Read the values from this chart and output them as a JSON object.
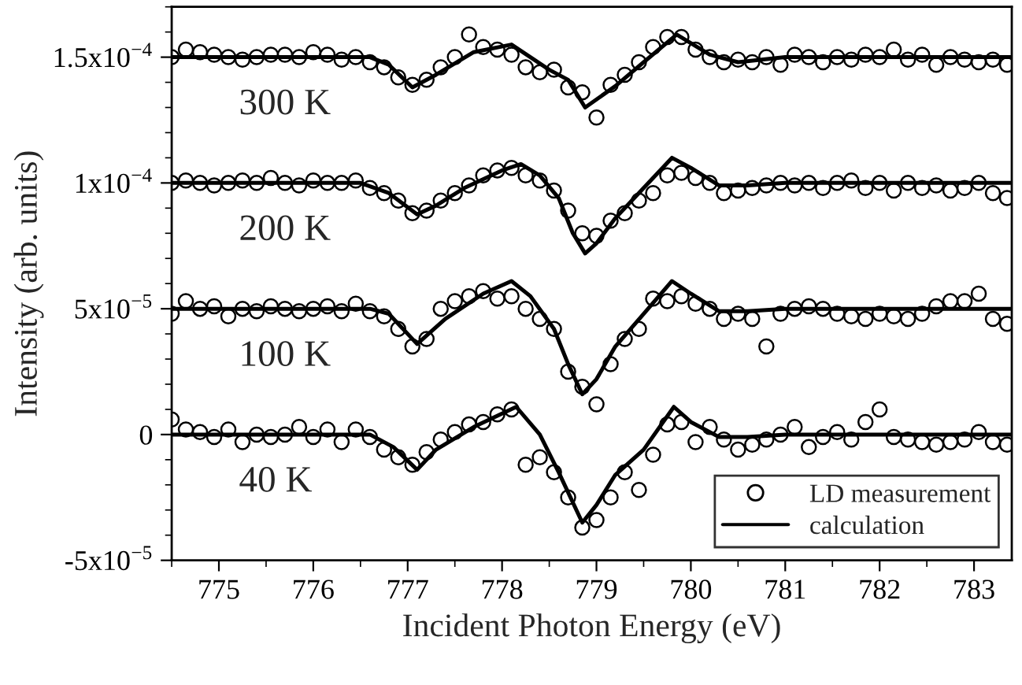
{
  "chart_data": {
    "type": "scatter",
    "xlabel": "Incident Photon Energy (eV)",
    "ylabel": "Intensity (arb. units)",
    "xlim": [
      774.5,
      783.4
    ],
    "xticks": [
      775,
      776,
      777,
      778,
      779,
      780,
      781,
      782,
      783
    ],
    "ylim": [
      -5e-05,
      0.00017
    ],
    "yticks": [
      {
        "value": -5e-05,
        "label": "-5x10$^{−5}$"
      },
      {
        "value": 0,
        "label": "0"
      },
      {
        "value": 5e-05,
        "label": "5x10$^{−5}$"
      },
      {
        "value": 0.0001,
        "label": "1x10$^{−4}$"
      },
      {
        "value": 0.00015,
        "label": "1.5x10$^{−4}$"
      }
    ],
    "grid": false,
    "legend": "bottom right",
    "x": [
      774.5,
      774.65,
      774.8,
      774.95,
      775.1,
      775.25,
      775.4,
      775.55,
      775.7,
      775.85,
      776.0,
      776.15,
      776.3,
      776.45,
      776.6,
      776.75,
      776.9,
      777.05,
      777.2,
      777.35,
      777.5,
      777.65,
      777.8,
      777.95,
      778.1,
      778.25,
      778.4,
      778.55,
      778.7,
      778.85,
      779.0,
      779.15,
      779.3,
      779.45,
      779.6,
      779.75,
      779.9,
      780.05,
      780.2,
      780.35,
      780.5,
      780.65,
      780.8,
      780.95,
      781.1,
      781.25,
      781.4,
      781.55,
      781.7,
      781.85,
      782.0,
      782.15,
      782.3,
      782.45,
      782.6,
      782.75,
      782.9,
      783.05,
      783.2,
      783.35
    ],
    "series": [
      {
        "name": "LD measurement",
        "marker": "circle",
        "color": "#000000",
        "values": [
          0.00015,
          0.000153,
          0.000152,
          0.000151,
          0.00015,
          0.000149,
          0.00015,
          0.000151,
          0.000151,
          0.00015,
          0.000152,
          0.000151,
          0.000149,
          0.00015,
          0.000148,
          0.000146,
          0.000142,
          0.000139,
          0.000141,
          0.000146,
          0.00015,
          0.000159,
          0.000154,
          0.000153,
          0.000151,
          0.000146,
          0.000144,
          0.000145,
          0.000138,
          0.000136,
          0.000126,
          0.000139,
          0.000143,
          0.000148,
          0.000154,
          0.000158,
          0.000158,
          0.000153,
          0.00015,
          0.000148,
          0.000149,
          0.000148,
          0.00015,
          0.000147,
          0.000151,
          0.00015,
          0.000148,
          0.00015,
          0.000149,
          0.000151,
          0.00015,
          0.000153,
          0.000149,
          0.000151,
          0.000147,
          0.00015,
          0.000149,
          0.000148,
          0.000149,
          0.000147
        ]
      },
      {
        "marker": "circle",
        "color": "#000000",
        "values": [
          0.0001,
          0.000101,
          0.0001,
          9.9e-05,
          0.0001,
          0.000101,
          0.0001,
          0.000102,
          0.0001,
          9.9e-05,
          0.000101,
          0.0001,
          0.0001,
          0.000101,
          9.8e-05,
          9.6e-05,
          9.3e-05,
          8.8e-05,
          8.9e-05,
          9.3e-05,
          9.6e-05,
          9.9e-05,
          0.000103,
          0.000105,
          0.000106,
          0.000103,
          0.000101,
          9.7e-05,
          8.9e-05,
          8e-05,
          7.9e-05,
          8.5e-05,
          8.8e-05,
          9.3e-05,
          9.6e-05,
          0.000103,
          0.000104,
          0.000102,
          0.0001,
          9.6e-05,
          9.7e-05,
          9.8e-05,
          9.9e-05,
          0.0001,
          9.9e-05,
          0.0001,
          9.8e-05,
          0.0001,
          0.000101,
          9.8e-05,
          0.0001,
          9.7e-05,
          0.0001,
          9.8e-05,
          9.9e-05,
          9.7e-05,
          9.8e-05,
          0.0001,
          9.6e-05,
          9.4e-05
        ]
      },
      {
        "marker": "circle",
        "color": "#000000",
        "values": [
          4.8e-05,
          5.3e-05,
          5e-05,
          5.1e-05,
          4.7e-05,
          5e-05,
          4.9e-05,
          5.1e-05,
          5e-05,
          4.9e-05,
          5e-05,
          5.1e-05,
          4.9e-05,
          5.2e-05,
          4.9e-05,
          4.7e-05,
          4.2e-05,
          3.5e-05,
          3.8e-05,
          5e-05,
          5.3e-05,
          5.5e-05,
          5.7e-05,
          5.4e-05,
          5.5e-05,
          5e-05,
          4.6e-05,
          4.2e-05,
          2.5e-05,
          1.9e-05,
          1.2e-05,
          2.8e-05,
          3.8e-05,
          4.2e-05,
          5.4e-05,
          5.3e-05,
          5.5e-05,
          5.2e-05,
          5e-05,
          4.6e-05,
          4.8e-05,
          4.6e-05,
          3.5e-05,
          4.8e-05,
          5e-05,
          5.1e-05,
          5e-05,
          4.8e-05,
          4.7e-05,
          4.6e-05,
          4.8e-05,
          4.7e-05,
          4.6e-05,
          4.8e-05,
          5.1e-05,
          5.3e-05,
          5.3e-05,
          5.6e-05,
          4.6e-05,
          4.4e-05
        ]
      },
      {
        "marker": "circle",
        "color": "#000000",
        "values": [
          6e-06,
          2e-06,
          1e-06,
          -1e-06,
          2e-06,
          -3e-06,
          0,
          -1e-06,
          0,
          3e-06,
          -1e-06,
          2e-06,
          -3e-06,
          2e-06,
          -1e-06,
          -6e-06,
          -9e-06,
          -1.2e-05,
          -7e-06,
          -2e-06,
          1e-06,
          4e-06,
          5e-06,
          8e-06,
          1e-05,
          -1.2e-05,
          -9e-06,
          -1.5e-05,
          -2.5e-05,
          -3.7e-05,
          -3.4e-05,
          -2.5e-05,
          -1.5e-05,
          -2.2e-05,
          -8e-06,
          4e-06,
          5e-06,
          -3e-06,
          3e-06,
          -2e-06,
          -6e-06,
          -4e-06,
          -2e-06,
          0,
          3e-06,
          -5e-06,
          -1e-06,
          1e-06,
          -2e-06,
          5e-06,
          1e-05,
          -1e-06,
          -2e-06,
          -3e-06,
          -4e-06,
          -3e-06,
          -2e-06,
          1e-06,
          -3e-06,
          -4e-06
        ]
      },
      {
        "type": "line",
        "marker": "none",
        "name": "calculation",
        "color": "#000000",
        "x": [
          774.5,
          776.6,
          776.8,
          777.05,
          777.3,
          777.7,
          778.1,
          778.3,
          778.5,
          778.7,
          778.88,
          779.2,
          779.5,
          779.85,
          780.2,
          780.5,
          781.0,
          783.4
        ],
        "values": [
          0.00015,
          0.00015,
          0.000147,
          0.000138,
          0.000143,
          0.000152,
          0.000155,
          0.00015,
          0.000145,
          0.000141,
          0.00013,
          0.0001385,
          0.000148,
          0.000159,
          0.000151,
          0.000148,
          0.00015,
          0.00015
        ]
      },
      {
        "type": "line",
        "marker": "none",
        "color": "#000000",
        "x": [
          774.5,
          776.5,
          776.8,
          777.1,
          777.3,
          777.6,
          778.0,
          778.2,
          778.4,
          778.6,
          778.75,
          778.88,
          779.0,
          779.2,
          779.5,
          779.8,
          780.0,
          780.3,
          780.6,
          781.0,
          783.4
        ],
        "values": [
          0.0001,
          0.0001,
          9.6e-05,
          8.75e-05,
          9.1e-05,
          9.8e-05,
          0.000105,
          0.0001075,
          0.000103,
          9.4e-05,
          8e-05,
          7.2e-05,
          7.6e-05,
          8.6e-05,
          9.8e-05,
          0.00011,
          0.000106,
          9.9e-05,
          9.9e-05,
          0.0001,
          0.0001
        ]
      },
      {
        "type": "line",
        "marker": "none",
        "color": "#000000",
        "x": [
          774.5,
          776.6,
          776.8,
          777.1,
          777.4,
          777.8,
          778.1,
          778.3,
          778.55,
          778.7,
          778.85,
          779.0,
          779.2,
          779.5,
          779.8,
          780.0,
          780.3,
          780.6,
          781.0,
          783.4
        ],
        "values": [
          5e-05,
          5e-05,
          4.8e-05,
          3.6e-05,
          4.6e-05,
          5.6e-05,
          6.1e-05,
          5.5e-05,
          4.2e-05,
          2.8e-05,
          1.6e-05,
          2.2e-05,
          3.5e-05,
          4.8e-05,
          6.1e-05,
          5.6e-05,
          4.9e-05,
          4.9e-05,
          5e-05,
          5e-05
        ]
      },
      {
        "type": "line",
        "marker": "none",
        "color": "#000000",
        "x": [
          774.5,
          776.6,
          776.85,
          777.1,
          777.3,
          777.7,
          778.15,
          778.4,
          778.6,
          778.85,
          779.0,
          779.2,
          779.5,
          779.82,
          780.0,
          780.3,
          780.6,
          781.0,
          783.4
        ],
        "values": [
          0,
          0,
          -5e-06,
          -1.4e-05,
          -6e-06,
          3e-06,
          1.1e-05,
          0,
          -1.5e-05,
          -3.5e-05,
          -2.8e-05,
          -1.6e-05,
          -6e-06,
          1.1e-05,
          5e-06,
          -1e-06,
          -1e-06,
          0,
          0
        ]
      }
    ],
    "annotations": [
      "300 K",
      "200 K",
      "100 K",
      "40 K"
    ]
  }
}
